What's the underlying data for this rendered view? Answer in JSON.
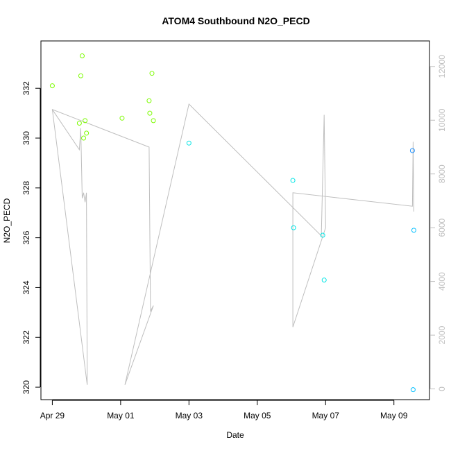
{
  "chart_data": {
    "type": "scatter",
    "title": "ATOM4 Southbound N2O_PECD",
    "xlabel": "Date",
    "ylabel": "N2O_PECD",
    "x_ticks": [
      "Apr 29",
      "May 01",
      "May 03",
      "May 05",
      "May 07",
      "May 09"
    ],
    "y_ticks": [
      "320",
      "322",
      "324",
      "326",
      "328",
      "330",
      "332"
    ],
    "y2_ticks": [
      "0",
      "2000",
      "4000",
      "6000",
      "8000",
      "10000",
      "12000"
    ],
    "xlim": [
      "2018-04-28T16:00",
      "2018-05-10T01:00"
    ],
    "ylim": [
      319.5,
      333.9
    ],
    "y2lim": [
      -400,
      12950
    ],
    "points": [
      {
        "x": "2018-04-29T00:00",
        "y": 332.1,
        "color": "#7cfc00"
      },
      {
        "x": "2018-04-29T19:00",
        "y": 330.6,
        "color": "#7cfc00"
      },
      {
        "x": "2018-04-29T20:00",
        "y": 332.5,
        "color": "#7cfc00"
      },
      {
        "x": "2018-04-29T21:00",
        "y": 333.3,
        "color": "#7cfc00"
      },
      {
        "x": "2018-04-29T22:00",
        "y": 330.0,
        "color": "#7cfc00"
      },
      {
        "x": "2018-04-29T23:00",
        "y": 330.7,
        "color": "#7cfc00"
      },
      {
        "x": "2018-04-30T00:00",
        "y": 330.2,
        "color": "#7cfc00"
      },
      {
        "x": "2018-05-01T01:00",
        "y": 330.8,
        "color": "#7cfc00"
      },
      {
        "x": "2018-05-01T20:00",
        "y": 331.5,
        "color": "#7cfc00"
      },
      {
        "x": "2018-05-01T20:30",
        "y": 331.0,
        "color": "#7cfc00"
      },
      {
        "x": "2018-05-01T22:00",
        "y": 332.6,
        "color": "#7cfc00"
      },
      {
        "x": "2018-05-01T23:00",
        "y": 330.7,
        "color": "#7cfc00"
      },
      {
        "x": "2018-05-03T00:00",
        "y": 329.8,
        "color": "#00e5e5"
      },
      {
        "x": "2018-05-06T01:00",
        "y": 328.3,
        "color": "#00e5e5"
      },
      {
        "x": "2018-05-06T01:30",
        "y": 326.4,
        "color": "#00e5e5"
      },
      {
        "x": "2018-05-06T22:00",
        "y": 326.1,
        "color": "#00e5e5"
      },
      {
        "x": "2018-05-06T23:00",
        "y": 324.3,
        "color": "#00e5e5"
      },
      {
        "x": "2018-05-09T13:00",
        "y": 329.5,
        "color": "#1e90ff"
      },
      {
        "x": "2018-05-09T13:30",
        "y": 319.9,
        "color": "#00bfff"
      },
      {
        "x": "2018-05-09T14:00",
        "y": 326.3,
        "color": "#00bfff"
      }
    ],
    "line_series": {
      "color": "#bebebe",
      "points": [
        {
          "x": "2018-04-29T00:00",
          "y": 10400
        },
        {
          "x": "2018-04-29T19:00",
          "y": 8900
        },
        {
          "x": "2018-04-29T20:00",
          "y": 9700
        },
        {
          "x": "2018-04-29T21:00",
          "y": 7100
        },
        {
          "x": "2018-04-29T22:00",
          "y": 7300
        },
        {
          "x": "2018-04-29T23:00",
          "y": 6950
        },
        {
          "x": "2018-04-30T00:00",
          "y": 7300
        },
        {
          "x": "2018-04-30T00:30",
          "y": 150
        },
        {
          "x": "2018-04-29T00:00",
          "y": 10400
        },
        {
          "x": "2018-05-01T20:00",
          "y": 9000
        },
        {
          "x": "2018-05-01T21:00",
          "y": 2900
        },
        {
          "x": "2018-05-01T23:00",
          "y": 3100
        },
        {
          "x": "2018-05-01T03:00",
          "y": 150
        },
        {
          "x": "2018-05-03T00:00",
          "y": 10600
        },
        {
          "x": "2018-05-06T21:00",
          "y": 5700
        },
        {
          "x": "2018-05-06T23:00",
          "y": 10200
        },
        {
          "x": "2018-05-07T00:00",
          "y": 6000
        },
        {
          "x": "2018-05-06T01:00",
          "y": 2300
        },
        {
          "x": "2018-05-06T01:00",
          "y": 7300
        },
        {
          "x": "2018-05-09T13:00",
          "y": 6800
        },
        {
          "x": "2018-05-09T13:30",
          "y": 9200
        },
        {
          "x": "2018-05-09T14:00",
          "y": 6600
        }
      ]
    }
  }
}
